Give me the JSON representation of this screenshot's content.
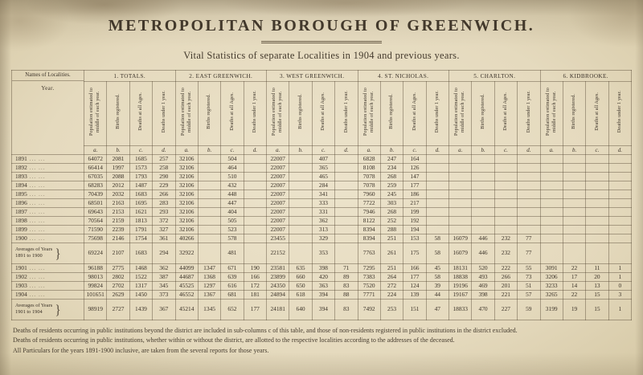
{
  "page": {
    "title": "METROPOLITAN BOROUGH OF GREENWICH.",
    "subtitle": "Vital Statistics of separate Localities in 1904 and previous years."
  },
  "table": {
    "corner_header": "Names of Localities.",
    "corner_sub": "Year.",
    "groups": [
      {
        "label": "1. TOTALS."
      },
      {
        "label": "2. EAST GREENWICH."
      },
      {
        "label": "3. WEST GREENWICH."
      },
      {
        "label": "4. ST. NICHOLAS."
      },
      {
        "label": "5. CHARLTON."
      },
      {
        "label": "6. KIDBROOKE."
      }
    ],
    "sub_columns": [
      "Population estimated to middle of each year.",
      "Births registered.",
      "Deaths at all Ages.",
      "Deaths under 1 year."
    ],
    "column_letters": [
      "a.",
      "b.",
      "c.",
      "d."
    ],
    "rows": [
      {
        "year": "1891",
        "cells": [
          "64072",
          "2081",
          "1685",
          "257",
          "32106",
          "",
          "504",
          "",
          "22007",
          "",
          "407",
          "",
          "6828",
          "247",
          "164",
          "",
          "",
          "",
          "",
          "",
          "",
          "",
          "",
          ""
        ]
      },
      {
        "year": "1892",
        "cells": [
          "66414",
          "1997",
          "1573",
          "258",
          "32106",
          "",
          "464",
          "",
          "22007",
          "",
          "365",
          "",
          "8108",
          "234",
          "126",
          "",
          "",
          "",
          "",
          "",
          "",
          "",
          "",
          ""
        ]
      },
      {
        "year": "1893",
        "cells": [
          "67035",
          "2088",
          "1793",
          "290",
          "32106",
          "",
          "510",
          "",
          "22007",
          "",
          "465",
          "",
          "7078",
          "268",
          "147",
          "",
          "",
          "",
          "",
          "",
          "",
          "",
          "",
          ""
        ]
      },
      {
        "year": "1894",
        "cells": [
          "68283",
          "2012",
          "1487",
          "229",
          "32106",
          "",
          "432",
          "",
          "22007",
          "",
          "284",
          "",
          "7078",
          "259",
          "177",
          "",
          "",
          "",
          "",
          "",
          "",
          "",
          "",
          ""
        ]
      },
      {
        "year": "1895",
        "cells": [
          "70439",
          "2032",
          "1683",
          "266",
          "32106",
          "",
          "448",
          "",
          "22007",
          "",
          "341",
          "",
          "7960",
          "245",
          "186",
          "",
          "",
          "",
          "",
          "",
          "",
          "",
          "",
          ""
        ]
      },
      {
        "year": "1896",
        "cells": [
          "68501",
          "2163",
          "1695",
          "283",
          "32106",
          "",
          "447",
          "",
          "22007",
          "",
          "333",
          "",
          "7722",
          "303",
          "217",
          "",
          "",
          "",
          "",
          "",
          "",
          "",
          "",
          ""
        ]
      },
      {
        "year": "1897",
        "cells": [
          "69643",
          "2153",
          "1621",
          "293",
          "32106",
          "",
          "404",
          "",
          "22007",
          "",
          "331",
          "",
          "7946",
          "268",
          "199",
          "",
          "",
          "",
          "",
          "",
          "",
          "",
          "",
          ""
        ]
      },
      {
        "year": "1898",
        "cells": [
          "70564",
          "2159",
          "1813",
          "372",
          "32106",
          "",
          "505",
          "",
          "22007",
          "",
          "362",
          "",
          "8122",
          "252",
          "192",
          "",
          "",
          "",
          "",
          "",
          "",
          "",
          "",
          ""
        ]
      },
      {
        "year": "1899",
        "cells": [
          "71590",
          "2239",
          "1791",
          "327",
          "32106",
          "",
          "523",
          "",
          "22007",
          "",
          "313",
          "",
          "8394",
          "288",
          "194",
          "",
          "",
          "",
          "",
          "",
          "",
          "",
          "",
          ""
        ]
      },
      {
        "year": "1900",
        "cells": [
          "75698",
          "2146",
          "1754",
          "361",
          "40266",
          "",
          "578",
          "",
          "23455",
          "",
          "329",
          "",
          "8394",
          "251",
          "153",
          "58",
          "16079",
          "446",
          "232",
          "77",
          "",
          "",
          "",
          ""
        ]
      },
      {
        "average": true,
        "label": "Averages of Years\n1891 to 1900",
        "cells": [
          "69224",
          "2107",
          "1683",
          "294",
          "32922",
          "",
          "481",
          "",
          "22152",
          "",
          "353",
          "",
          "7763",
          "261",
          "175",
          "58",
          "16079",
          "446",
          "232",
          "77",
          "",
          "",
          "",
          ""
        ]
      },
      {
        "year": "1901",
        "cells": [
          "96188",
          "2775",
          "1468",
          "362",
          "44099",
          "1347",
          "671",
          "190",
          "23581",
          "635",
          "398",
          "71",
          "7295",
          "251",
          "166",
          "45",
          "18131",
          "520",
          "222",
          "55",
          "3091",
          "22",
          "11",
          "1"
        ]
      },
      {
        "year": "1902",
        "cells": [
          "98013",
          "2802",
          "1522",
          "387",
          "44687",
          "1368",
          "639",
          "166",
          "23899",
          "660",
          "420",
          "89",
          "7383",
          "264",
          "177",
          "58",
          "18838",
          "493",
          "266",
          "73",
          "3206",
          "17",
          "20",
          "1"
        ]
      },
      {
        "year": "1903",
        "cells": [
          "99824",
          "2702",
          "1317",
          "345",
          "45525",
          "1297",
          "616",
          "172",
          "24350",
          "650",
          "363",
          "83",
          "7520",
          "272",
          "124",
          "39",
          "19196",
          "469",
          "201",
          "51",
          "3233",
          "14",
          "13",
          "0"
        ]
      },
      {
        "year": "1904",
        "cells": [
          "101651",
          "2629",
          "1450",
          "373",
          "46552",
          "1367",
          "681",
          "181",
          "24894",
          "618",
          "394",
          "88",
          "7771",
          "224",
          "139",
          "44",
          "19167",
          "398",
          "221",
          "57",
          "3265",
          "22",
          "15",
          "3"
        ]
      },
      {
        "average": true,
        "label": "Averages of Years\n1901 to 1904",
        "cells": [
          "98919",
          "2727",
          "1439",
          "367",
          "45214",
          "1345",
          "652",
          "177",
          "24181",
          "640",
          "394",
          "83",
          "7492",
          "253",
          "151",
          "47",
          "18833",
          "470",
          "227",
          "59",
          "3199",
          "19",
          "15",
          "1"
        ]
      }
    ]
  },
  "footnotes": [
    "Deaths of residents occurring in public institutions beyond the district are included in sub-columns c of this table, and those of non-residents registered in public institutions in the district excluded.",
    "Deaths of residents occurring in public institutions, whether within or without the district, are allotted to the respective localities according to the addresses of the deceased.",
    "All Particulars for the years 1891-1900 inclusive, are taken from the several reports for those years."
  ]
}
